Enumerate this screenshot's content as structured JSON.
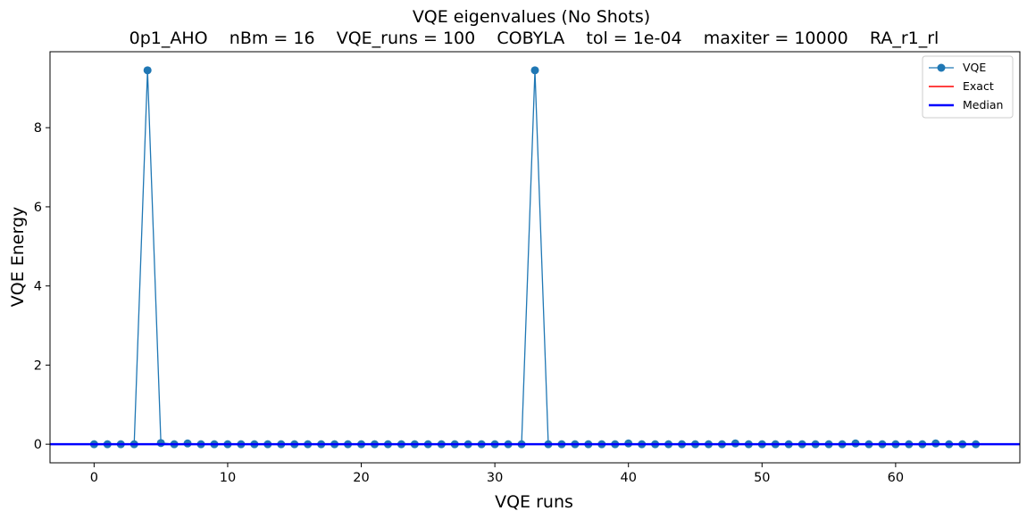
{
  "chart_data": {
    "type": "line",
    "title": "VQE eigenvalues (No Shots)",
    "subtitle": "0p1_AHO    nBm = 16    VQE_runs = 100    COBYLA    tol = 1e-04    maxiter = 10000    RA_r1_rl",
    "xlabel": "VQE runs",
    "ylabel": "VQE Energy",
    "xlim": [
      -3.3,
      69.3
    ],
    "ylim": [
      -0.47,
      9.92
    ],
    "xticks": [
      0,
      10,
      20,
      30,
      40,
      50,
      60
    ],
    "yticks": [
      0,
      2,
      4,
      6,
      8
    ],
    "grid": false,
    "legend_position": "top-right",
    "series": [
      {
        "name": "VQE",
        "color": "#1f77b4",
        "marker": "circle",
        "x": [
          0,
          1,
          2,
          3,
          4,
          5,
          6,
          7,
          8,
          9,
          10,
          11,
          12,
          13,
          14,
          15,
          16,
          17,
          18,
          19,
          20,
          21,
          22,
          23,
          24,
          25,
          26,
          27,
          28,
          29,
          30,
          31,
          32,
          33,
          34,
          35,
          36,
          37,
          38,
          39,
          40,
          41,
          42,
          43,
          44,
          45,
          46,
          47,
          48,
          49,
          50,
          51,
          52,
          53,
          54,
          55,
          56,
          57,
          58,
          59,
          60,
          61,
          62,
          63,
          64,
          65,
          66
        ],
        "y": [
          0,
          0,
          0,
          0,
          9.45,
          0.03,
          0,
          0.02,
          0,
          0,
          0,
          0,
          0,
          0,
          0,
          0,
          0,
          0,
          0,
          0,
          0,
          0,
          0,
          0,
          0,
          0,
          0,
          0,
          0,
          0,
          0,
          0,
          0,
          9.45,
          0,
          0,
          0,
          0,
          0,
          0,
          0.02,
          0,
          0,
          0,
          0,
          0,
          0,
          0,
          0.02,
          0,
          0,
          0,
          0,
          0,
          0,
          0,
          0,
          0.02,
          0,
          0,
          0,
          0,
          0,
          0.02,
          0,
          0,
          0
        ]
      },
      {
        "name": "Exact",
        "color": "#ff0000",
        "y_value": 0
      },
      {
        "name": "Median",
        "color": "#0000ff",
        "y_value": 0
      }
    ]
  }
}
